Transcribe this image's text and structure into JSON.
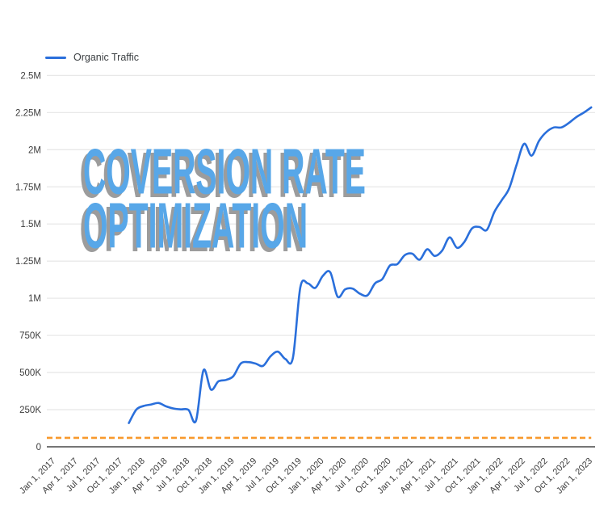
{
  "legend": {
    "items": [
      {
        "label": "Organic Traffic",
        "color": "#2a6fdb"
      }
    ]
  },
  "overlay": {
    "line1": "COVERSION RATE",
    "line2": "OPTIMIZATION",
    "text_color": "#58a7e8",
    "shadow_color": "#9c9c9c"
  },
  "chart_data": {
    "type": "line",
    "title": "",
    "xlabel": "",
    "ylabel": "",
    "grid": true,
    "legend_position": "top-left",
    "ylim": [
      0,
      2500000
    ],
    "y_ticks": [
      {
        "label": "0",
        "value": 0
      },
      {
        "label": "250K",
        "value": 250000
      },
      {
        "label": "500K",
        "value": 500000
      },
      {
        "label": "750K",
        "value": 750000
      },
      {
        "label": "1M",
        "value": 1000000
      },
      {
        "label": "1.25M",
        "value": 1250000
      },
      {
        "label": "1.5M",
        "value": 1500000
      },
      {
        "label": "1.75M",
        "value": 1750000
      },
      {
        "label": "2M",
        "value": 2000000
      },
      {
        "label": "2.25M",
        "value": 2250000
      },
      {
        "label": "2.5M",
        "value": 2500000
      }
    ],
    "x_tick_labels": [
      "Jan 1, 2017",
      "Apr 1, 2017",
      "Jul 1, 2017",
      "Oct 1, 2017",
      "Jan 1, 2018",
      "Apr 1, 2018",
      "Jul 1, 2018",
      "Oct 1, 2018",
      "Jan 1, 2019",
      "Apr 1, 2019",
      "Jul 1, 2019",
      "Oct 1, 2019",
      "Jan 1, 2020",
      "Apr 1, 2020",
      "Jul 1, 2020",
      "Oct 1, 2020",
      "Jan 1, 2021",
      "Apr 1, 2021",
      "Jul 1, 2021",
      "Oct 1, 2021",
      "Jan 1, 2022",
      "Apr 1, 2022",
      "Jul 1, 2022",
      "Oct 1, 2022",
      "Jan 1, 2023"
    ],
    "x_tick_interval_months": 3,
    "series": [
      {
        "name": "Organic Traffic",
        "color": "#2a6fdb",
        "style": "solid",
        "start_month": "2017-12",
        "start_month_index": 11,
        "unit": "visits/month",
        "values": [
          160000,
          250000,
          275000,
          285000,
          295000,
          272000,
          258000,
          252000,
          248000,
          175000,
          515000,
          385000,
          440000,
          450000,
          475000,
          560000,
          570000,
          560000,
          545000,
          610000,
          640000,
          590000,
          600000,
          1075000,
          1100000,
          1070000,
          1150000,
          1175000,
          1010000,
          1060000,
          1065000,
          1030000,
          1020000,
          1100000,
          1130000,
          1220000,
          1230000,
          1290000,
          1300000,
          1260000,
          1330000,
          1285000,
          1320000,
          1410000,
          1340000,
          1380000,
          1470000,
          1480000,
          1460000,
          1580000,
          1660000,
          1740000,
          1900000,
          2040000,
          1960000,
          2060000,
          2120000,
          2150000,
          2150000,
          2180000,
          2220000,
          2250000,
          2285000
        ]
      },
      {
        "name": "baseline",
        "color": "#f8992c",
        "style": "dashed",
        "constant_value": 60000,
        "start_month_index": 0,
        "end_month_index": 73
      }
    ],
    "axis_color": "#757575",
    "gridline_color": "#e8e8e8",
    "tick_text_color": "#3d3d3d"
  }
}
